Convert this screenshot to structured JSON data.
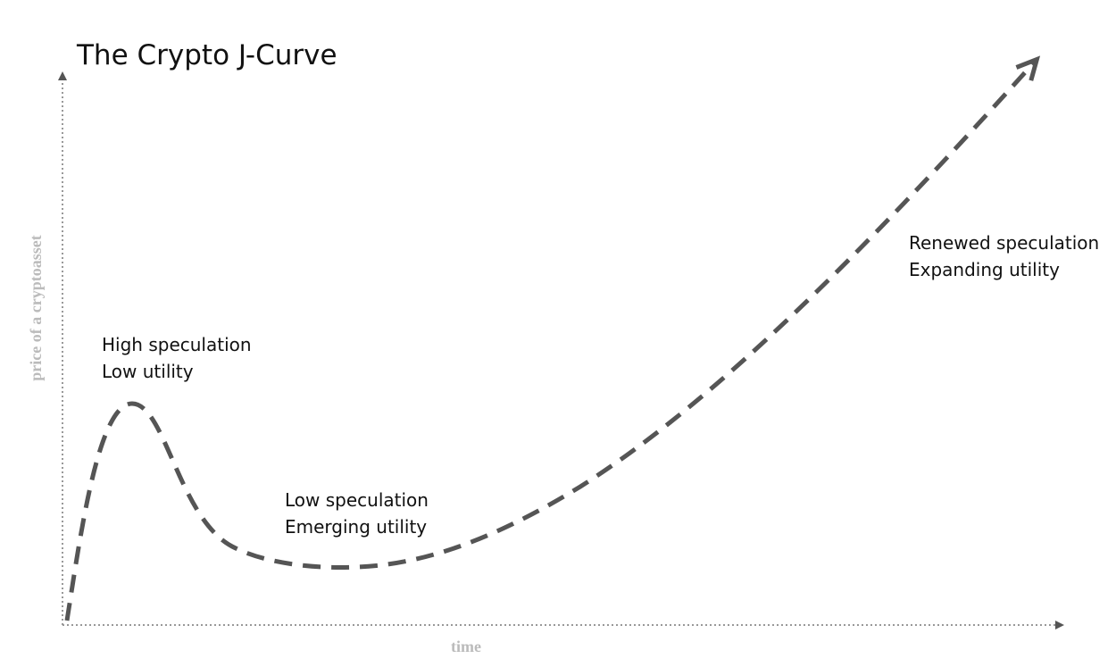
{
  "title": "The Crypto J-Curve",
  "axes": {
    "x_label": "time",
    "y_label": "price of a cryptoasset"
  },
  "annotations": [
    {
      "lines": [
        "High speculation",
        "Low utility"
      ]
    },
    {
      "lines": [
        "Low speculation",
        "Emerging utility"
      ]
    },
    {
      "lines": [
        "Renewed speculation",
        "Expanding utility"
      ]
    }
  ]
}
